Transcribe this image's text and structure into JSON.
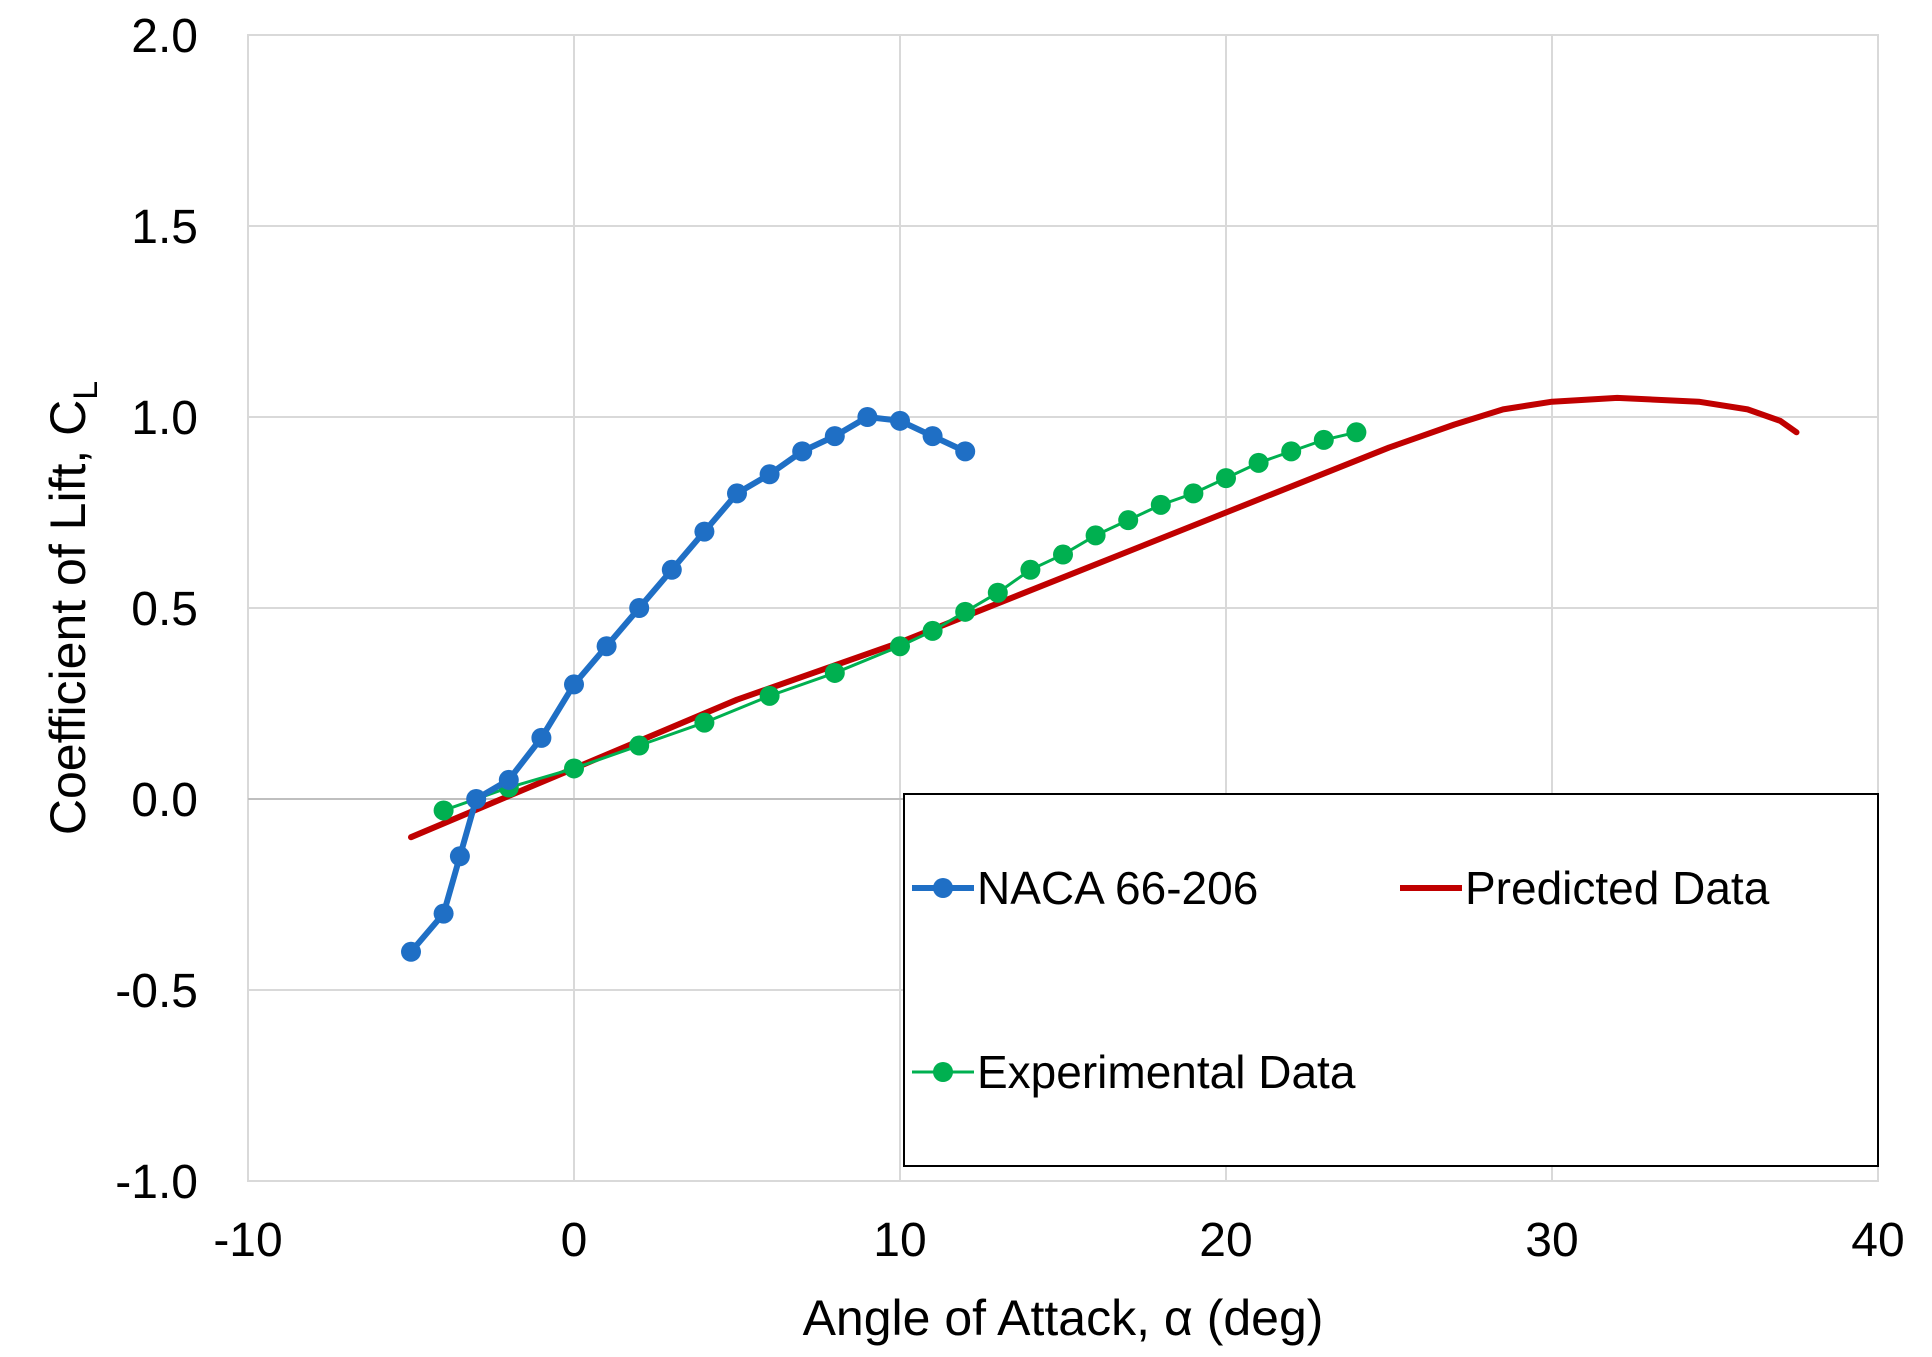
{
  "chart_data": {
    "type": "line",
    "title": "",
    "xlabel": "Angle of Attack, α (deg)",
    "ylabel": "Coefficient of Lift, C",
    "ylabel_subscript": "L",
    "xlim": [
      -10,
      40
    ],
    "ylim": [
      -1.0,
      2.0
    ],
    "xticks": [
      -10,
      0,
      10,
      20,
      30,
      40
    ],
    "xtick_labels": [
      "-10",
      "0",
      "10",
      "20",
      "30",
      "40"
    ],
    "yticks": [
      -1.0,
      -0.5,
      0.0,
      0.5,
      1.0,
      1.5,
      2.0
    ],
    "ytick_labels": [
      "-1.0",
      "-0.5",
      "0.0",
      "0.5",
      "1.0",
      "1.5",
      "2.0"
    ],
    "grid": true,
    "legend_position": "bottom-right",
    "series": [
      {
        "name": "NACA 66-206",
        "color": "#1f6fc5",
        "markers": true,
        "x": [
          -5,
          -4,
          -3.5,
          -3,
          -2,
          -1,
          0,
          1,
          2,
          3,
          4,
          5,
          6,
          7,
          8,
          9,
          10,
          11,
          12
        ],
        "y": [
          -0.4,
          -0.3,
          -0.15,
          0.0,
          0.05,
          0.16,
          0.3,
          0.4,
          0.5,
          0.6,
          0.7,
          0.8,
          0.85,
          0.91,
          0.95,
          1.0,
          0.99,
          0.95,
          0.91
        ]
      },
      {
        "name": "Predicted Data",
        "color": "#c00000",
        "markers": false,
        "x": [
          -5,
          0,
          5,
          10,
          15,
          20,
          25,
          27,
          28.5,
          30,
          32,
          34.5,
          36,
          37,
          37.5
        ],
        "y": [
          -0.1,
          0.08,
          0.26,
          0.41,
          0.58,
          0.75,
          0.92,
          0.98,
          1.02,
          1.04,
          1.05,
          1.04,
          1.02,
          0.99,
          0.96
        ]
      },
      {
        "name": "Experimental Data",
        "color": "#00b050",
        "markers": true,
        "x": [
          -4,
          -2,
          0,
          2,
          4,
          6,
          8,
          10,
          11,
          12,
          13,
          14,
          15,
          16,
          17,
          18,
          19,
          20,
          21,
          22,
          23,
          24
        ],
        "y": [
          -0.03,
          0.03,
          0.08,
          0.14,
          0.2,
          0.27,
          0.33,
          0.4,
          0.44,
          0.49,
          0.54,
          0.6,
          0.64,
          0.69,
          0.73,
          0.77,
          0.8,
          0.84,
          0.88,
          0.91,
          0.94,
          0.96
        ]
      }
    ]
  }
}
